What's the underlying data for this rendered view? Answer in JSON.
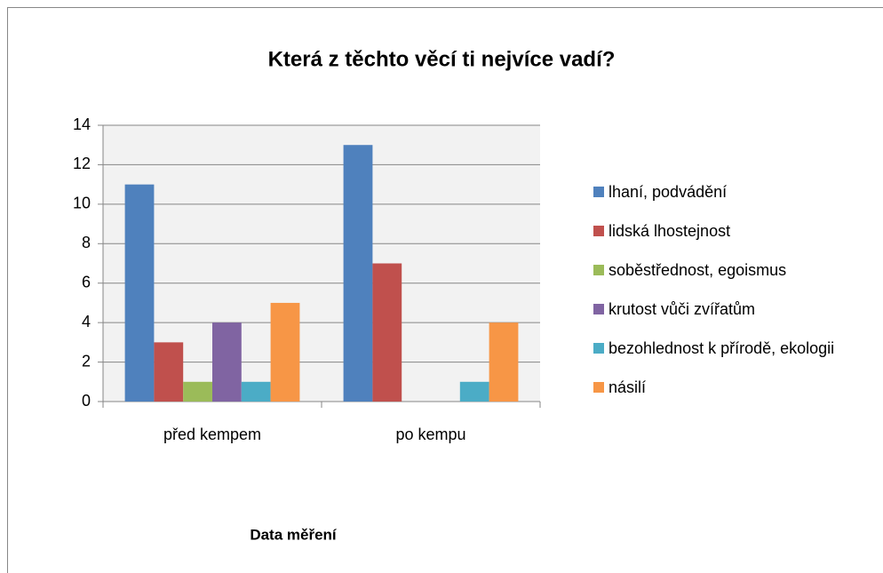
{
  "chart_data": {
    "type": "bar",
    "title": "Která z těchto věcí ti nejvíce vadí?",
    "x_label": "Data měření",
    "categories": [
      "před kempem",
      "po kempu"
    ],
    "series": [
      {
        "name": "lhaní, podvádění",
        "color": "#4f81bd",
        "values": [
          11,
          13
        ]
      },
      {
        "name": "lidská lhostejnost",
        "color": "#c0504d",
        "values": [
          3,
          7
        ]
      },
      {
        "name": "soběstřednost, egoismus",
        "color": "#9bbb59",
        "values": [
          1,
          0
        ]
      },
      {
        "name": "krutost vůči zvířatům",
        "color": "#8064a2",
        "values": [
          4,
          0
        ]
      },
      {
        "name": "bezohlednost k přírodě, ekologii",
        "color": "#4bacc6",
        "values": [
          1,
          1
        ]
      },
      {
        "name": "násilí",
        "color": "#f79646",
        "values": [
          5,
          4
        ]
      }
    ],
    "ylim": [
      0,
      14
    ],
    "yticks": [
      0,
      2,
      4,
      6,
      8,
      10,
      12,
      14
    ],
    "grid": true,
    "legend": "right"
  }
}
